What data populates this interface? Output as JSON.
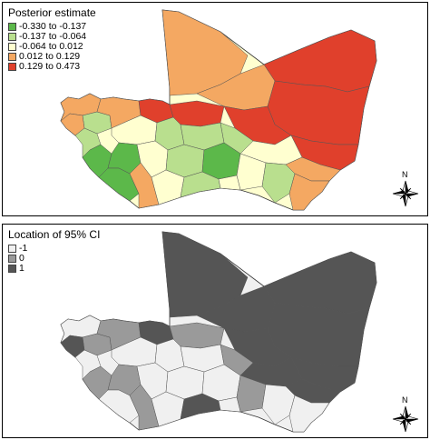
{
  "panels": [
    {
      "legend_title": "Posterior estimate",
      "classes": [
        {
          "label": "-0.330 to -0.137",
          "color": "#5cb84a"
        },
        {
          "label": "-0.137 to -0.064",
          "color": "#b9df8e"
        },
        {
          "label": "-0.064 to 0.012",
          "color": "#ffffd0"
        },
        {
          "label": "0.012 to 0.129",
          "color": "#f4a862"
        },
        {
          "label": "0.129 to 0.473",
          "color": "#e0402c"
        }
      ],
      "north_label": "N"
    },
    {
      "legend_title": "Location of 95% CI",
      "classes": [
        {
          "label": "-1",
          "color": "#f0f0f0"
        },
        {
          "label": "0",
          "color": "#9a9a9a"
        },
        {
          "label": "1",
          "color": "#555555"
        }
      ],
      "north_label": "N"
    }
  ]
}
